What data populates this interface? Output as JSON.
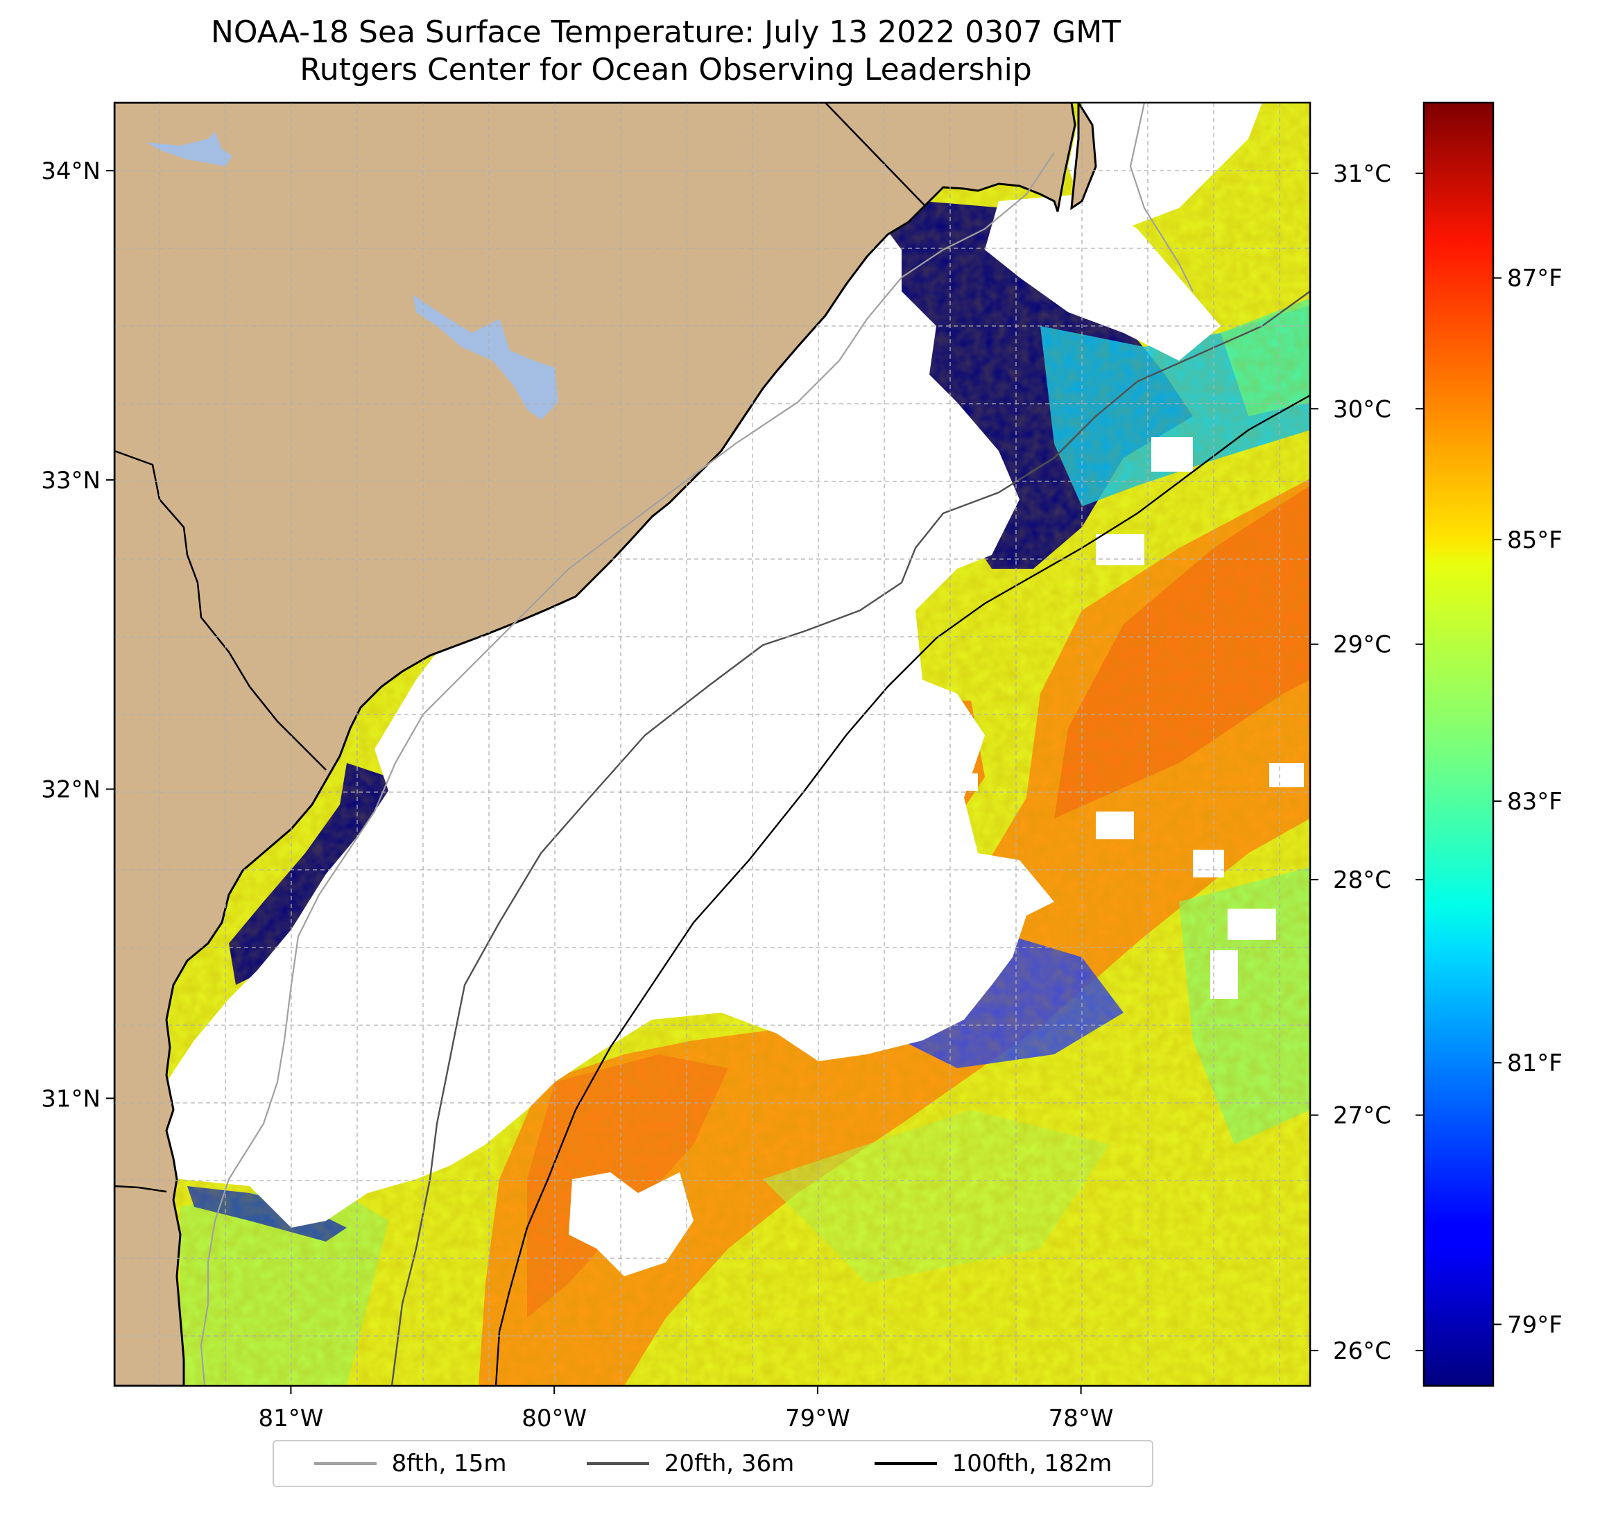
{
  "title": {
    "line1": "NOAA-18 Sea Surface Temperature: July 13 2022 0307 GMT",
    "line2": "Rutgers Center for Ocean Observing Leadership"
  },
  "map": {
    "lon_range": [
      -81.67,
      -77.13
    ],
    "lat_range": [
      30.07,
      34.22
    ],
    "lon_ticks": [
      {
        "value": -81,
        "label": "81°W"
      },
      {
        "value": -80,
        "label": "80°W"
      },
      {
        "value": -79,
        "label": "79°W"
      },
      {
        "value": -78,
        "label": "78°W"
      }
    ],
    "lat_ticks": [
      {
        "value": 31,
        "label": "31°N"
      },
      {
        "value": 32,
        "label": "32°N"
      },
      {
        "value": 33,
        "label": "33°N"
      },
      {
        "value": 34,
        "label": "34°N"
      }
    ],
    "colors": {
      "land": "#d2b48c",
      "lakes": "#a3bde3",
      "cloud_mask": "#ffffff",
      "gridlines": "#b0b0b0",
      "coast": "#000000"
    }
  },
  "colorbar": {
    "colormap": "jet",
    "range_celsius": [
      25.85,
      31.3
    ],
    "celsius_ticks": [
      {
        "value": 26,
        "label": "26°C"
      },
      {
        "value": 27,
        "label": "27°C"
      },
      {
        "value": 28,
        "label": "28°C"
      },
      {
        "value": 29,
        "label": "29°C"
      },
      {
        "value": 30,
        "label": "30°C"
      },
      {
        "value": 31,
        "label": "31°C"
      }
    ],
    "fahrenheit_ticks": [
      {
        "value": 79,
        "label": "79°F"
      },
      {
        "value": 81,
        "label": "81°F"
      },
      {
        "value": 83,
        "label": "83°F"
      },
      {
        "value": 85,
        "label": "85°F"
      },
      {
        "value": 87,
        "label": "87°F"
      }
    ]
  },
  "legend": {
    "placement": "bottom-center",
    "items": [
      {
        "label": "8fth, 15m",
        "color": "#a0a0a0"
      },
      {
        "label": "20fth, 36m",
        "color": "#505050"
      },
      {
        "label": "100fth, 182m",
        "color": "#000000"
      }
    ]
  }
}
